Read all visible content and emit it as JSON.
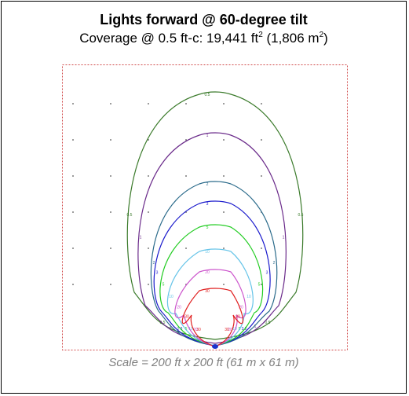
{
  "title": "Lights forward @ 60-degree tilt",
  "coverage": {
    "prefix": "Coverage @ 0.5 ft-c: ",
    "area_ft": "19,441 ft",
    "ft_exp": "2",
    "area_m_open": " (1,806 m",
    "m_exp": "2",
    "close": ")"
  },
  "caption": "Scale = 200 ft x 200 ft (61 m x 61 m)",
  "colors": {
    "border": "#d04a4a",
    "grid_dot": "#555555",
    "source": "#1a33cc"
  },
  "contours": [
    {
      "level": "0.5",
      "color": "#3a7a2a"
    },
    {
      "level": "1",
      "color": "#6a2a8a"
    },
    {
      "level": "2",
      "color": "#2a6a8a"
    },
    {
      "level": "3",
      "color": "#1a1acc"
    },
    {
      "level": "5",
      "color": "#22cc22"
    },
    {
      "level": "10",
      "color": "#66c4e8"
    },
    {
      "level": "20",
      "color": "#cc55cc"
    },
    {
      "level": "30",
      "color": "#e02020"
    }
  ]
}
